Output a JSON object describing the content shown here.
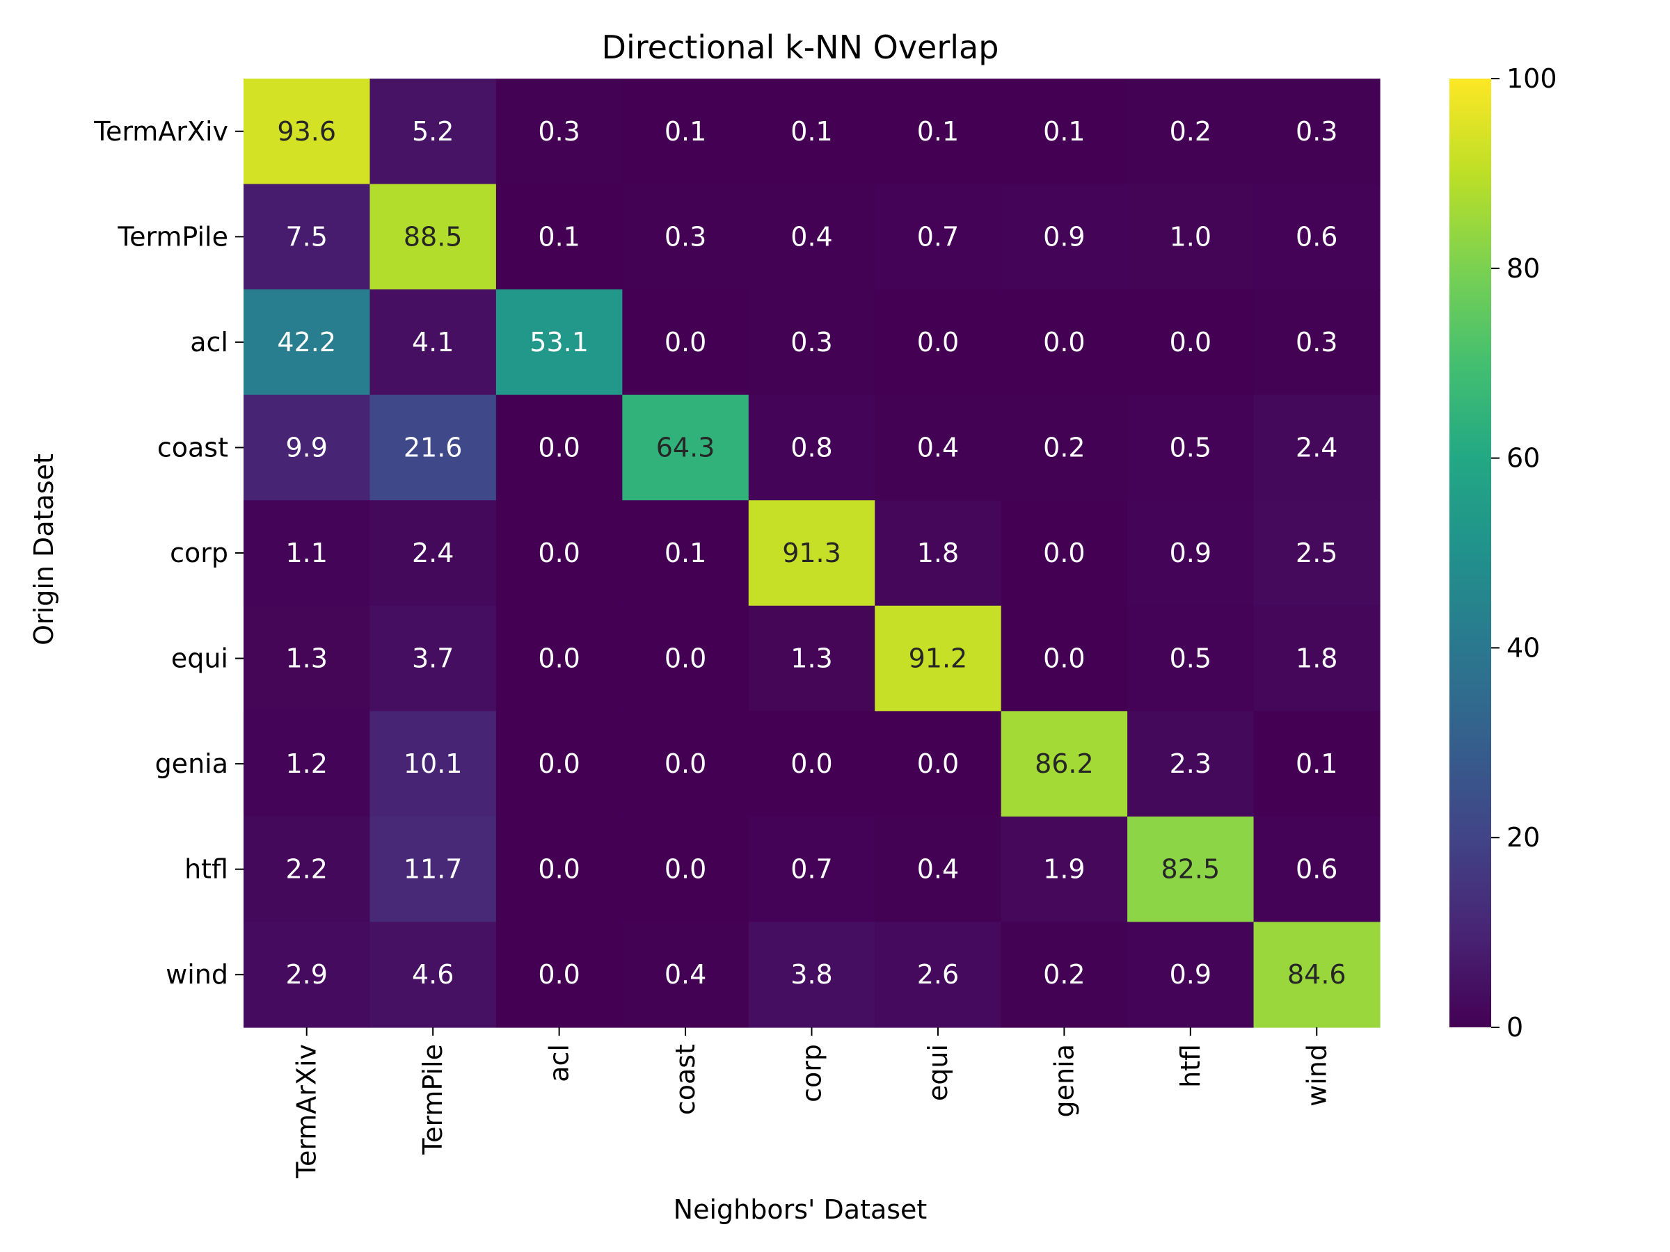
{
  "chart_data": {
    "type": "heatmap",
    "title": "Directional k-NN Overlap",
    "xlabel": "Neighbors' Dataset",
    "ylabel": "Origin Dataset",
    "x_categories": [
      "TermArXiv",
      "TermPile",
      "acl",
      "coast",
      "corp",
      "equi",
      "genia",
      "htfl",
      "wind"
    ],
    "y_categories": [
      "TermArXiv",
      "TermPile",
      "acl",
      "coast",
      "corp",
      "equi",
      "genia",
      "htfl",
      "wind"
    ],
    "values": [
      [
        93.6,
        5.2,
        0.3,
        0.1,
        0.1,
        0.1,
        0.1,
        0.2,
        0.3
      ],
      [
        7.5,
        88.5,
        0.1,
        0.3,
        0.4,
        0.7,
        0.9,
        1.0,
        0.6
      ],
      [
        42.2,
        4.1,
        53.1,
        0.0,
        0.3,
        0.0,
        0.0,
        0.0,
        0.3
      ],
      [
        9.9,
        21.6,
        0.0,
        64.3,
        0.8,
        0.4,
        0.2,
        0.5,
        2.4
      ],
      [
        1.1,
        2.4,
        0.0,
        0.1,
        91.3,
        1.8,
        0.0,
        0.9,
        2.5
      ],
      [
        1.3,
        3.7,
        0.0,
        0.0,
        1.3,
        91.2,
        0.0,
        0.5,
        1.8
      ],
      [
        1.2,
        10.1,
        0.0,
        0.0,
        0.0,
        0.0,
        86.2,
        2.3,
        0.1
      ],
      [
        2.2,
        11.7,
        0.0,
        0.0,
        0.7,
        0.4,
        1.9,
        82.5,
        0.6
      ],
      [
        2.9,
        4.6,
        0.0,
        0.4,
        3.8,
        2.6,
        0.2,
        0.9,
        84.6
      ]
    ],
    "value_format": "0.1f",
    "colormap": "viridis",
    "vmin": 0,
    "vmax": 100,
    "colorbar_ticks": [
      0,
      20,
      40,
      60,
      80,
      100
    ]
  }
}
